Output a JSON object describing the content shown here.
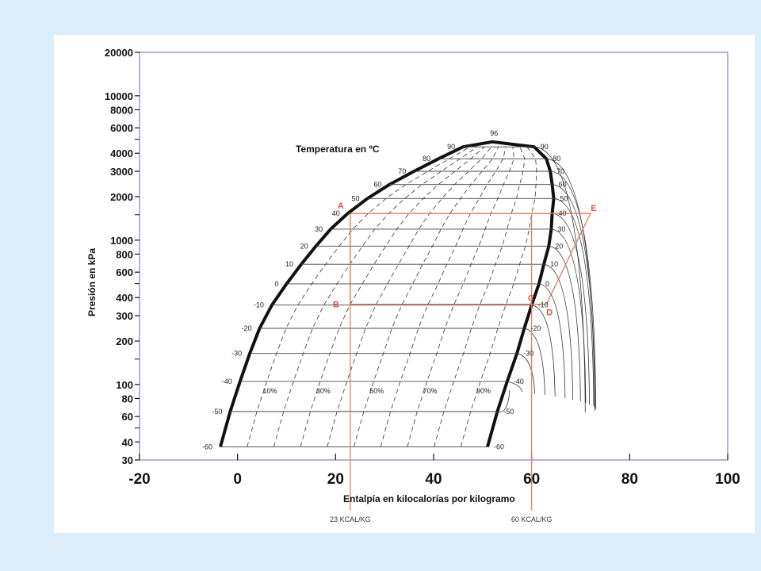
{
  "colors": {
    "background": "#dcedfb",
    "cycle": "#e07a5f",
    "dome": "#111111",
    "purple_grid": "#8a6bc4"
  },
  "chart_data": {
    "type": "line",
    "title": "",
    "inner_title": "Temperatura en ºC",
    "ylabel": "Presión en kPa",
    "xlabel": "Entalpía en kilocalorías por kilogramo",
    "yscale": "log",
    "ylim": [
      30,
      20000
    ],
    "xlim": [
      -20,
      100
    ],
    "y_ticks": [
      "20000",
      "10000",
      "8000",
      "6000",
      "4000",
      "3000",
      "2000",
      "1000",
      "800",
      "600",
      "400",
      "300",
      "200",
      "100",
      "80",
      "60",
      "40",
      "30"
    ],
    "x_ticks": [
      "-20",
      "0",
      "20",
      "40",
      "60",
      "80",
      "100"
    ],
    "saturated_liquid": [
      {
        "t": -60,
        "h": -3.5
      },
      {
        "t": -50,
        "h": -1.5
      },
      {
        "t": -40,
        "h": 0.5
      },
      {
        "t": -30,
        "h": 2.5
      },
      {
        "t": -20,
        "h": 4.5
      },
      {
        "t": -10,
        "h": 7
      },
      {
        "t": 0,
        "h": 10
      },
      {
        "t": 10,
        "h": 13
      },
      {
        "t": 20,
        "h": 16
      },
      {
        "t": 30,
        "h": 19
      },
      {
        "t": 40,
        "h": 22.5
      },
      {
        "t": 50,
        "h": 26.5
      },
      {
        "t": 60,
        "h": 31
      },
      {
        "t": 70,
        "h": 36
      },
      {
        "t": 80,
        "h": 41
      },
      {
        "t": 90,
        "h": 46
      }
    ],
    "saturated_vapor": [
      {
        "t": -60,
        "h": 51
      },
      {
        "t": -50,
        "h": 53
      },
      {
        "t": -40,
        "h": 55
      },
      {
        "t": -30,
        "h": 57
      },
      {
        "t": -20,
        "h": 58.5
      },
      {
        "t": -10,
        "h": 60
      },
      {
        "t": 0,
        "h": 61.5
      },
      {
        "t": 10,
        "h": 62.5
      },
      {
        "t": 20,
        "h": 63.5
      },
      {
        "t": 30,
        "h": 64
      },
      {
        "t": 40,
        "h": 64.2
      },
      {
        "t": 50,
        "h": 64.5
      },
      {
        "t": 60,
        "h": 64.2
      },
      {
        "t": 70,
        "h": 63.8
      },
      {
        "t": 80,
        "h": 63
      },
      {
        "t": 90,
        "h": 60.5
      }
    ],
    "critical_point": {
      "t": 96,
      "h": 52,
      "p": 4800
    },
    "liquid_side_temps": [
      "-60",
      "-50",
      "-40",
      "-30",
      "-20",
      "-10",
      "0",
      "10",
      "20",
      "30",
      "40",
      "50",
      "60",
      "70",
      "80",
      "90"
    ],
    "vapor_side_temps": [
      "-60",
      "-50",
      "-40",
      "-30",
      "-20",
      "-10",
      "0",
      "10",
      "20",
      "30",
      "40",
      "50",
      "60",
      "70",
      "80",
      "90"
    ],
    "top_temp": "96",
    "quality_labels": [
      "10%",
      "30%",
      "50%",
      "70%",
      "90%"
    ],
    "cycle_points": [
      {
        "label": "A",
        "h": 23,
        "p": 1530
      },
      {
        "label": "B",
        "h": 23,
        "p": 360
      },
      {
        "label": "C",
        "h": 61.5,
        "p": 360
      },
      {
        "label": "D",
        "h": 63,
        "p": 360
      },
      {
        "label": "E",
        "h": 72,
        "p": 1530
      }
    ],
    "reference_labels": [
      {
        "text": "23 KCAL/KG",
        "h": 23
      },
      {
        "text": "60 KCAL/KG",
        "h": 60
      }
    ]
  }
}
